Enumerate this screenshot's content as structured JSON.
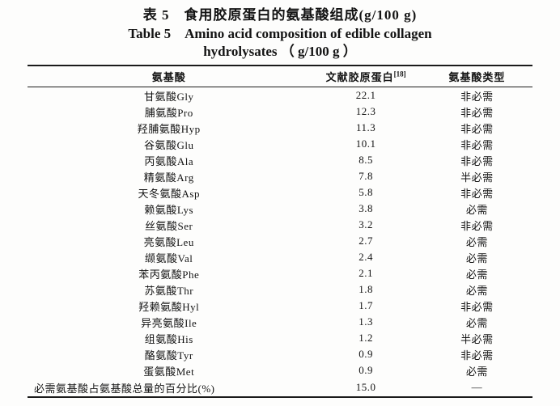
{
  "captions": {
    "zh": "表 5　食用胶原蛋白的氨基酸组成(g/100 g)",
    "en_line1": "Table 5　Amino acid composition of edible collagen",
    "en_line2": "hydrolysates （ g/100 g ）"
  },
  "table": {
    "headers": {
      "col1": "氨基酸",
      "col2_base": "文献胶原蛋白",
      "col2_sup": "[18]",
      "col3": "氨基酸类型"
    },
    "rows": [
      {
        "name": "甘氨酸Gly",
        "value": "22.1",
        "type": "非必需"
      },
      {
        "name": "脯氨酸Pro",
        "value": "12.3",
        "type": "非必需"
      },
      {
        "name": "羟脯氨酸Hyp",
        "value": "11.3",
        "type": "非必需"
      },
      {
        "name": "谷氨酸Glu",
        "value": "10.1",
        "type": "非必需"
      },
      {
        "name": "丙氨酸Ala",
        "value": "8.5",
        "type": "非必需"
      },
      {
        "name": "精氨酸Arg",
        "value": "7.8",
        "type": "半必需"
      },
      {
        "name": "天冬氨酸Asp",
        "value": "5.8",
        "type": "非必需"
      },
      {
        "name": "赖氨酸Lys",
        "value": "3.8",
        "type": "必需"
      },
      {
        "name": "丝氨酸Ser",
        "value": "3.2",
        "type": "非必需"
      },
      {
        "name": "亮氨酸Leu",
        "value": "2.7",
        "type": "必需"
      },
      {
        "name": "缬氨酸Val",
        "value": "2.4",
        "type": "必需"
      },
      {
        "name": "苯丙氨酸Phe",
        "value": "2.1",
        "type": "必需"
      },
      {
        "name": "苏氨酸Thr",
        "value": "1.8",
        "type": "必需"
      },
      {
        "name": "羟赖氨酸Hyl",
        "value": "1.7",
        "type": "非必需"
      },
      {
        "name": "异亮氨酸Ile",
        "value": "1.3",
        "type": "必需"
      },
      {
        "name": "组氨酸His",
        "value": "1.2",
        "type": "半必需"
      },
      {
        "name": "酪氨酸Tyr",
        "value": "0.9",
        "type": "非必需"
      },
      {
        "name": "蛋氨酸Met",
        "value": "0.9",
        "type": "必需"
      }
    ],
    "footer": {
      "name": "必需氨基酸占氨基酸总量的百分比(%)",
      "value": "15.0",
      "type": "—"
    }
  }
}
